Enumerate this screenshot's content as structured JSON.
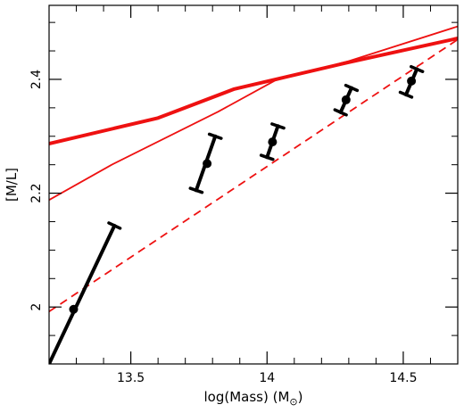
{
  "chart_data": {
    "type": "line",
    "title": "",
    "xlabel": "log(Mass) (M",
    "xlabel_sub": "⊙",
    "xlabel_close": ")",
    "ylabel": "[M/L]",
    "xlim": [
      13.2,
      14.7
    ],
    "ylim": [
      1.9,
      2.53
    ],
    "xticks": [
      13.5,
      14,
      14.5
    ],
    "xtick_labels": [
      "13.5",
      "14",
      "14.5"
    ],
    "yticks": [
      2,
      2.2,
      2.4
    ],
    "ytick_labels": [
      "2",
      "2.2",
      "2.4"
    ],
    "grid": false,
    "legend": "none",
    "lines": [
      {
        "style": "thick",
        "color": "#ee1111",
        "x": [
          13.2,
          13.6,
          13.88,
          14.3,
          14.7
        ],
        "y": [
          2.287,
          2.332,
          2.383,
          2.43,
          2.472
        ]
      },
      {
        "style": "thin",
        "color": "#ee1111",
        "x": [
          13.2,
          13.43,
          13.82,
          14.03,
          14.3,
          14.7
        ],
        "y": [
          2.188,
          2.25,
          2.343,
          2.398,
          2.432,
          2.493
        ]
      },
      {
        "style": "dashed",
        "color": "#ee1111",
        "x": [
          13.2,
          14.7
        ],
        "y": [
          1.992,
          2.47
        ]
      }
    ],
    "points": [
      {
        "x": 13.29,
        "y": 1.996,
        "x_lo": 13.2,
        "y_lo": 1.9,
        "x_hi": 13.44,
        "y_hi": 2.143
      },
      {
        "x": 13.78,
        "y": 2.252,
        "x_lo": 13.74,
        "y_lo": 2.205,
        "x_hi": 13.81,
        "y_hi": 2.3
      },
      {
        "x": 14.02,
        "y": 2.29,
        "x_lo": 14.0,
        "y_lo": 2.263,
        "x_hi": 14.04,
        "y_hi": 2.318
      },
      {
        "x": 14.29,
        "y": 2.364,
        "x_lo": 14.27,
        "y_lo": 2.342,
        "x_hi": 14.31,
        "y_hi": 2.385
      },
      {
        "x": 14.53,
        "y": 2.397,
        "x_lo": 14.51,
        "y_lo": 2.373,
        "x_hi": 14.55,
        "y_hi": 2.418
      }
    ],
    "colors": {
      "model": "#ee1111",
      "data": "#000000"
    }
  }
}
